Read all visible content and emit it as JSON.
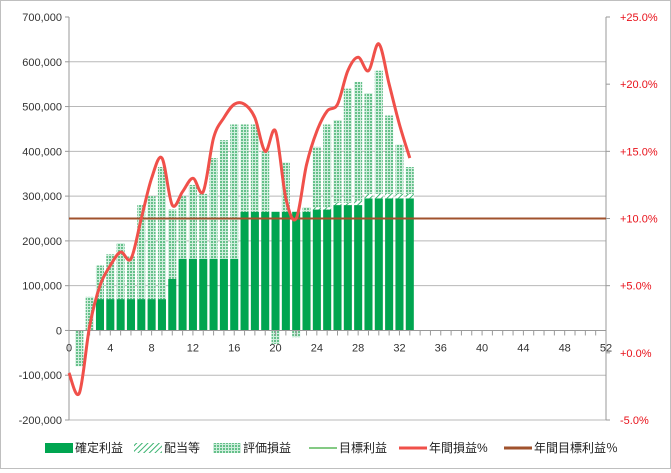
{
  "chart_data": {
    "type": "bar",
    "x_ticks": [
      0,
      4,
      8,
      12,
      16,
      20,
      24,
      28,
      32,
      36,
      40,
      44,
      48,
      52
    ],
    "xlim": [
      0,
      52
    ],
    "ylim_left": [
      -200000,
      700000
    ],
    "ylim_right": [
      -5,
      25
    ],
    "left_ticks": [
      {
        "value": 700000,
        "label": "700,000"
      },
      {
        "value": 600000,
        "label": "600,000"
      },
      {
        "value": 500000,
        "label": "500,000"
      },
      {
        "value": 400000,
        "label": "400,000"
      },
      {
        "value": 300000,
        "label": "300,000"
      },
      {
        "value": 200000,
        "label": "200,000"
      },
      {
        "value": 100000,
        "label": "100,000"
      },
      {
        "value": 0,
        "label": "0"
      },
      {
        "value": -100000,
        "label": "-100,000"
      },
      {
        "value": -200000,
        "label": "-200,000"
      }
    ],
    "right_ticks": [
      {
        "value": 25,
        "label": "+25.0%"
      },
      {
        "value": 20,
        "label": "+20.0%"
      },
      {
        "value": 15,
        "label": "+15.0%"
      },
      {
        "value": 10,
        "label": "+10.0%"
      },
      {
        "value": 5,
        "label": "+5.0%"
      },
      {
        "value": 0,
        "label": "+0.0%"
      },
      {
        "value": -5,
        "label": "-5.0%"
      }
    ],
    "grid": true,
    "legend_position": "bottom",
    "colors": {
      "confirmed": "#00a550",
      "dividend": "#3cb371",
      "unrealized": "#66c08a",
      "target_profit": "#5cb85c",
      "annual_pct": "#f0504a",
      "annual_target_pct": "#a0522d"
    },
    "series": [
      {
        "name": "確定利益",
        "key": "confirmed",
        "x": [
          1,
          2,
          3,
          4,
          5,
          6,
          7,
          8,
          9,
          10,
          11,
          12,
          13,
          14,
          15,
          16,
          17,
          18,
          19,
          20,
          21,
          22,
          23,
          24,
          25,
          26,
          27,
          28,
          29,
          30,
          31,
          32,
          33
        ],
        "values": [
          0,
          0,
          70000,
          70000,
          70000,
          70000,
          70000,
          70000,
          70000,
          115000,
          160000,
          160000,
          160000,
          160000,
          160000,
          160000,
          265000,
          265000,
          265000,
          265000,
          265000,
          265000,
          265000,
          270000,
          270000,
          280000,
          280000,
          280000,
          295000,
          295000,
          295000,
          295000,
          295000
        ]
      },
      {
        "name": "配当等",
        "key": "dividend",
        "x": [
          1,
          2,
          3,
          4,
          5,
          6,
          7,
          8,
          9,
          10,
          11,
          12,
          13,
          14,
          15,
          16,
          17,
          18,
          19,
          20,
          21,
          22,
          23,
          24,
          25,
          26,
          27,
          28,
          29,
          30,
          31,
          32,
          33
        ],
        "values": [
          0,
          0,
          0,
          0,
          0,
          0,
          0,
          0,
          0,
          0,
          0,
          0,
          0,
          0,
          0,
          0,
          0,
          0,
          0,
          0,
          0,
          0,
          0,
          5000,
          5000,
          5000,
          5000,
          10000,
          10000,
          10000,
          10000,
          10000,
          10000
        ]
      },
      {
        "name": "評価損益",
        "key": "unrealized",
        "x": [
          1,
          2,
          3,
          4,
          5,
          6,
          7,
          8,
          9,
          10,
          11,
          12,
          13,
          14,
          15,
          16,
          17,
          18,
          19,
          20,
          21,
          22,
          23,
          24,
          25,
          26,
          27,
          28,
          29,
          30,
          31,
          32,
          33
        ],
        "values": [
          -80000,
          75000,
          75000,
          100000,
          125000,
          95000,
          210000,
          230000,
          295000,
          155000,
          140000,
          165000,
          145000,
          225000,
          265000,
          300000,
          195000,
          195000,
          135000,
          -30000,
          110000,
          -15000,
          10000,
          135000,
          185000,
          185000,
          255000,
          265000,
          225000,
          275000,
          175000,
          110000,
          60000
        ]
      },
      {
        "name": "目標利益",
        "key": "target_profit",
        "x": [
          0,
          52
        ],
        "values": [
          250000,
          250000
        ]
      },
      {
        "name": "年間損益%",
        "key": "annual_pct",
        "axis": "right",
        "x": [
          0,
          1,
          2,
          3,
          4,
          5,
          6,
          7,
          8,
          9,
          10,
          11,
          12,
          13,
          14,
          15,
          16,
          17,
          18,
          19,
          20,
          21,
          22,
          23,
          24,
          25,
          26,
          27,
          28,
          29,
          30,
          31,
          32,
          33
        ],
        "values": [
          -1.5,
          -3,
          2,
          5,
          6.5,
          7.5,
          7,
          10,
          13,
          14.5,
          11,
          12,
          13,
          12,
          16,
          17.5,
          18.5,
          18.5,
          17.5,
          15,
          16.5,
          11.5,
          10,
          14,
          16.5,
          18,
          18.5,
          21,
          22,
          21,
          23,
          20,
          17,
          14.5
        ]
      },
      {
        "name": "年間目標利益％",
        "key": "annual_target_pct",
        "axis": "right",
        "x": [
          0,
          52
        ],
        "values": [
          10,
          10
        ]
      }
    ]
  }
}
